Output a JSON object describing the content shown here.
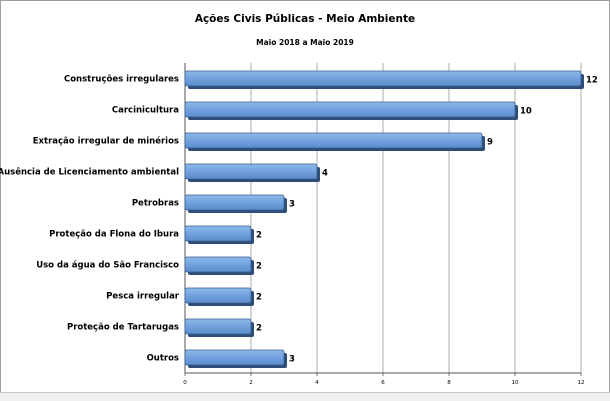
{
  "chart_data": {
    "type": "bar",
    "orientation": "horizontal",
    "title": "Ações Civis Públicas - Meio Ambiente",
    "subtitle": "Maio 2018 a Maio 2019",
    "categories": [
      "Construções irregulares",
      "Carcinicultura",
      "Extração irregular de minérios",
      "Ausência de Licenciamento ambiental",
      "Petrobras",
      "Proteção da Flona do Ibura",
      "Uso da água do São Francisco",
      "Pesca irregular",
      "Proteção de Tartarugas",
      "Outros"
    ],
    "values": [
      12,
      10,
      9,
      4,
      3,
      2,
      2,
      2,
      2,
      3
    ],
    "xlim": [
      0,
      12
    ],
    "xticks": [
      0,
      2,
      4,
      6,
      8,
      10,
      12
    ],
    "grid": true,
    "bar_color": "#6fa0dc",
    "bar_edge_color": "#3a5f8f"
  }
}
